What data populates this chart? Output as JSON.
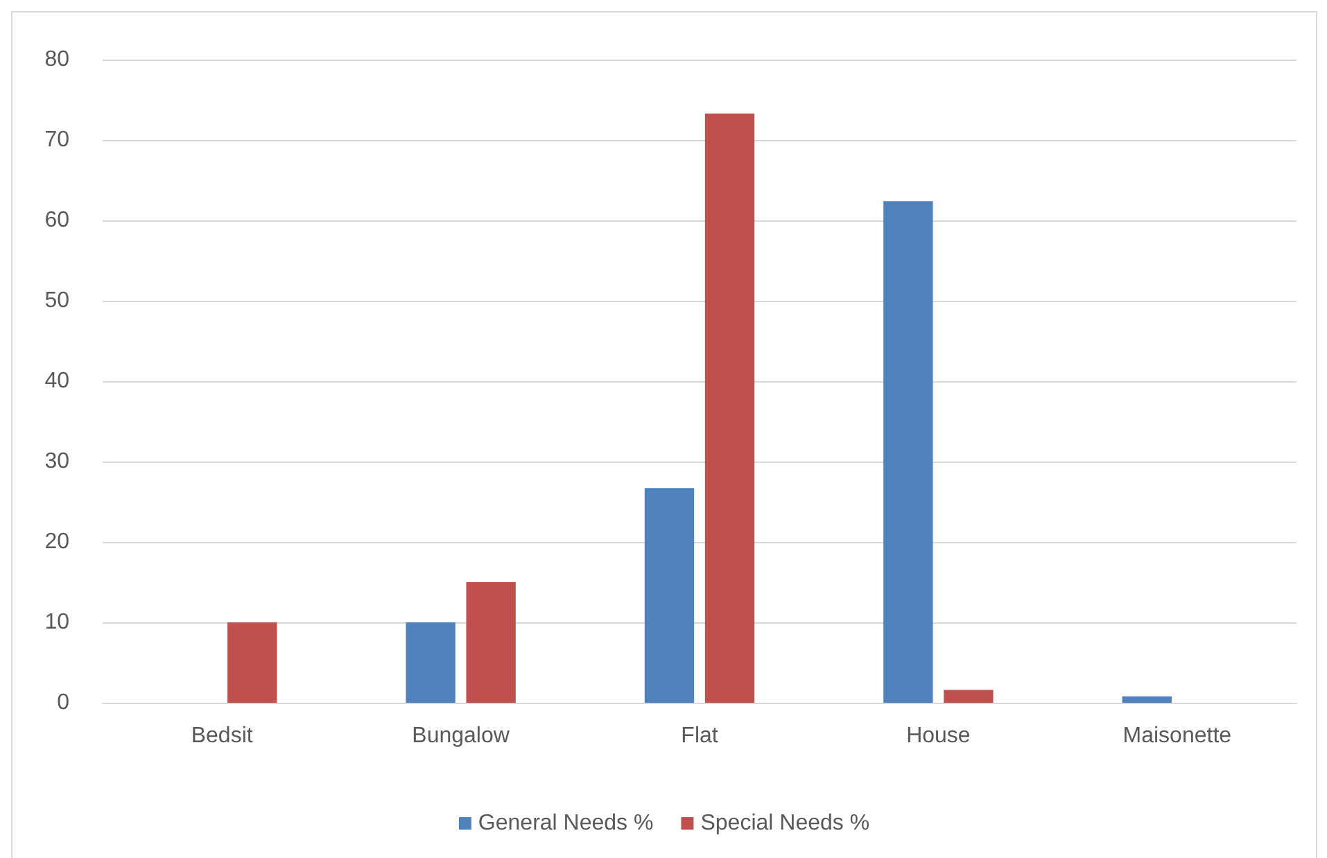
{
  "chart_data": {
    "type": "bar",
    "categories": [
      "Bedsit",
      "Bungalow",
      "Flat",
      "House",
      "Maisonette"
    ],
    "series": [
      {
        "name": "General Needs %",
        "color": "#4f81bd",
        "values": [
          0,
          10,
          26.7,
          62.4,
          0.8
        ]
      },
      {
        "name": "Special Needs %",
        "color": "#c0504d",
        "values": [
          10,
          15,
          73.3,
          1.6,
          0
        ]
      }
    ],
    "ylim": [
      0,
      80
    ],
    "yticks": [
      0,
      10,
      20,
      30,
      40,
      50,
      60,
      70,
      80
    ],
    "grid": "y",
    "legend": "bottom"
  }
}
